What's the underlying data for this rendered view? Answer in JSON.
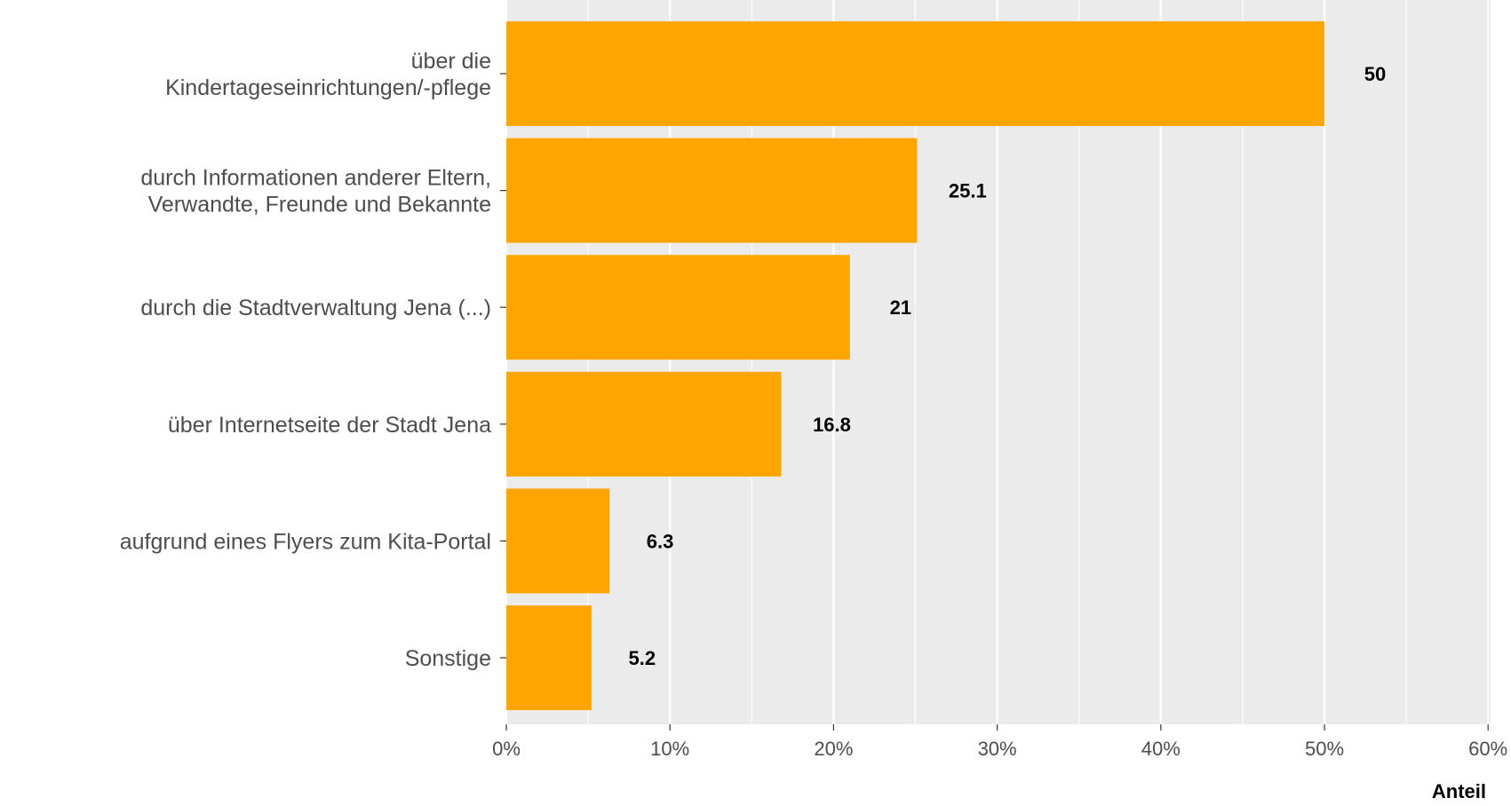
{
  "chart_data": {
    "type": "bar",
    "orientation": "horizontal",
    "categories": [
      [
        "über die",
        "Kindertageseinrichtungen/-pflege"
      ],
      [
        "durch Informationen anderer Eltern,",
        "Verwandte, Freunde und Bekannte"
      ],
      [
        "durch die Stadtverwaltung Jena (...)"
      ],
      [
        "über Internetseite der Stadt Jena"
      ],
      [
        "aufgrund eines Flyers zum Kita-Portal"
      ],
      [
        "Sonstige"
      ]
    ],
    "values": [
      50,
      25.1,
      21,
      16.8,
      6.3,
      5.2
    ],
    "value_labels": [
      "50",
      "25.1",
      "21",
      "16.8",
      "6.3",
      "5.2"
    ],
    "xlim": [
      0,
      60
    ],
    "xticks": [
      0,
      10,
      20,
      30,
      40,
      50,
      60
    ],
    "xtick_labels": [
      "0%",
      "10%",
      "20%",
      "30%",
      "40%",
      "50%",
      "60%"
    ],
    "xlabel": "Anteil",
    "grid": true,
    "colors": {
      "bar": "#FFA500",
      "panel": "#EBEBEB",
      "grid": "#FFFFFF"
    }
  }
}
